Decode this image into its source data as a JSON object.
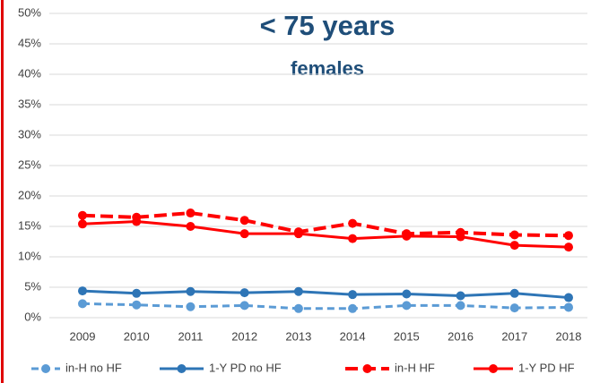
{
  "chart_data": {
    "type": "line",
    "title": "< 75 years",
    "subtitle": "females",
    "categories": [
      "2009",
      "2010",
      "2011",
      "2012",
      "2013",
      "2014",
      "2015",
      "2016",
      "2017",
      "2018"
    ],
    "ylim": [
      0,
      50
    ],
    "yticks": [
      {
        "value": 0,
        "label": "0%"
      },
      {
        "value": 5,
        "label": "5%"
      },
      {
        "value": 10,
        "label": "10%"
      },
      {
        "value": 15,
        "label": "15%"
      },
      {
        "value": 20,
        "label": "20%"
      },
      {
        "value": 25,
        "label": "25%"
      },
      {
        "value": 30,
        "label": "30%"
      },
      {
        "value": 35,
        "label": "35%"
      },
      {
        "value": 40,
        "label": "40%"
      },
      {
        "value": 45,
        "label": "45%"
      },
      {
        "value": 50,
        "label": "50%"
      }
    ],
    "grid": true,
    "legend": "bottom",
    "series": [
      {
        "name": "in-H no HF",
        "color": "#5b9bd5",
        "dashed": true,
        "values": [
          2.3,
          2.1,
          1.8,
          2.0,
          1.5,
          1.5,
          2.0,
          2.0,
          1.6,
          1.7
        ]
      },
      {
        "name": "1-Y PD no HF",
        "color": "#2e75b6",
        "dashed": false,
        "values": [
          4.4,
          4.0,
          4.3,
          4.1,
          4.3,
          3.8,
          3.9,
          3.6,
          4.0,
          3.3
        ]
      },
      {
        "name": "in-H HF",
        "color": "#ff0000",
        "dashed": true,
        "values": [
          16.8,
          16.5,
          17.2,
          16.0,
          14.1,
          15.5,
          13.8,
          14.0,
          13.6,
          13.5
        ]
      },
      {
        "name": "1-Y PD HF",
        "color": "#ff0000",
        "dashed": false,
        "values": [
          15.4,
          15.8,
          15.0,
          13.8,
          13.8,
          13.0,
          13.4,
          13.3,
          11.9,
          11.6
        ]
      }
    ]
  }
}
